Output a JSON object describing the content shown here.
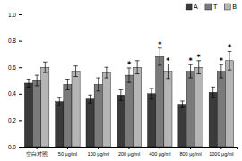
{
  "chart_data": {
    "type": "bar",
    "categories": [
      "空白对照",
      "50 μg/ml",
      "100 μg/ml",
      "200 μg/ml",
      "400 μg/ml",
      "800 μg/ml",
      "1000 μg/ml"
    ],
    "series": [
      {
        "name": "A",
        "color": "#3a3a3a",
        "values": [
          0.48,
          0.34,
          0.36,
          0.39,
          0.4,
          0.32,
          0.41
        ],
        "errors": [
          0.03,
          0.03,
          0.03,
          0.04,
          0.04,
          0.025,
          0.04
        ]
      },
      {
        "name": "T",
        "color": "#7a7a7a",
        "values": [
          0.5,
          0.47,
          0.47,
          0.54,
          0.68,
          0.57,
          0.57
        ],
        "errors": [
          0.04,
          0.04,
          0.05,
          0.055,
          0.065,
          0.05,
          0.05
        ],
        "annotations": [
          null,
          null,
          null,
          "*",
          "*",
          "*",
          "*"
        ]
      },
      {
        "name": "B",
        "color": "#b5b5b5",
        "values": [
          0.6,
          0.57,
          0.56,
          0.6,
          0.57,
          0.6,
          0.65
        ],
        "errors": [
          0.04,
          0.04,
          0.04,
          0.05,
          0.055,
          0.05,
          0.07
        ],
        "annotations": [
          null,
          null,
          null,
          null,
          "*",
          "*",
          "*"
        ]
      }
    ],
    "ylim": [
      0,
      1.0
    ],
    "yticks": [
      {
        "value": 0,
        "label": "0.0"
      },
      0.2,
      0.4,
      0.6,
      0.8,
      {
        "value": 1,
        "label": "1.0"
      }
    ],
    "legend": "upper right",
    "grid": false
  }
}
